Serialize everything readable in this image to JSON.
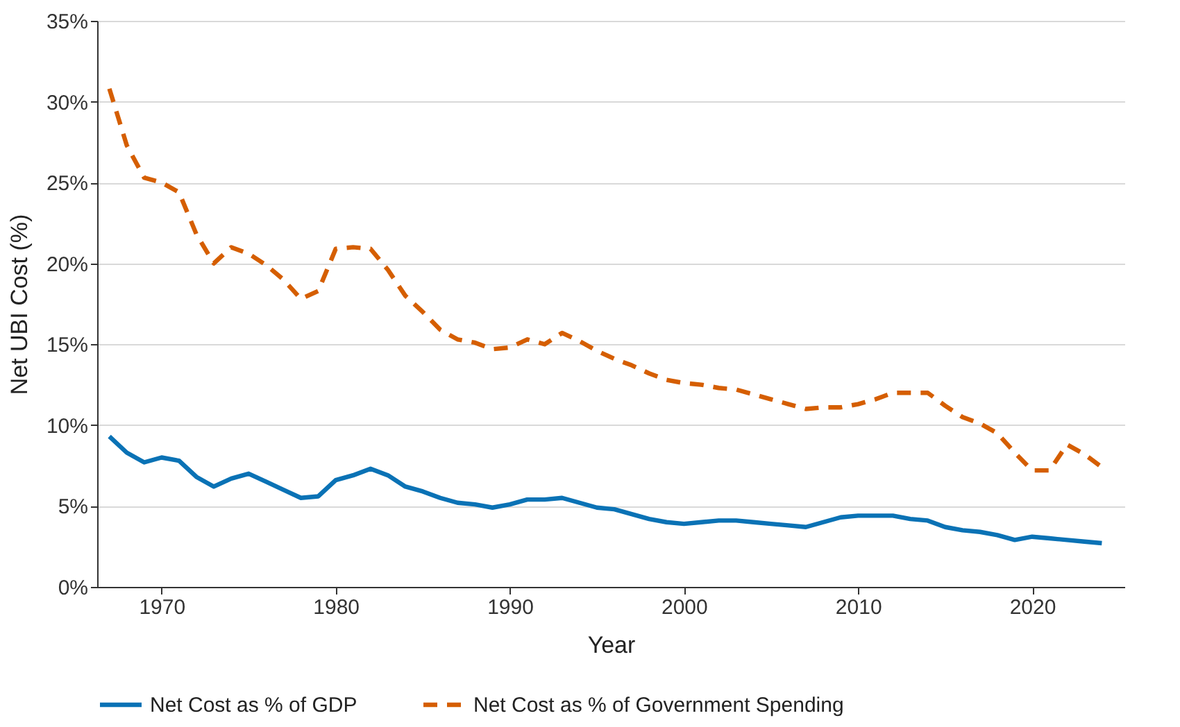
{
  "chart_data": {
    "type": "line",
    "xlabel": "Year",
    "ylabel": "Net UBI Cost (%)",
    "x": [
      1967,
      1968,
      1969,
      1970,
      1971,
      1972,
      1973,
      1974,
      1975,
      1976,
      1977,
      1978,
      1979,
      1980,
      1981,
      1982,
      1983,
      1984,
      1985,
      1986,
      1987,
      1988,
      1989,
      1990,
      1991,
      1992,
      1993,
      1994,
      1995,
      1996,
      1997,
      1998,
      1999,
      2000,
      2001,
      2002,
      2003,
      2004,
      2005,
      2006,
      2007,
      2008,
      2009,
      2010,
      2011,
      2012,
      2013,
      2014,
      2015,
      2016,
      2017,
      2018,
      2019,
      2020,
      2021,
      2022,
      2023,
      2024
    ],
    "series": [
      {
        "name": "Net Cost as % of GDP",
        "color": "#0a72b5",
        "line_style": "solid",
        "values": [
          9.3,
          8.3,
          7.7,
          8.0,
          7.8,
          6.8,
          6.2,
          6.7,
          7.0,
          6.5,
          6.0,
          5.5,
          5.6,
          6.6,
          6.9,
          7.3,
          6.9,
          6.2,
          5.9,
          5.5,
          5.2,
          5.1,
          4.9,
          5.1,
          5.4,
          5.4,
          5.5,
          5.2,
          4.9,
          4.8,
          4.5,
          4.2,
          4.0,
          3.9,
          4.0,
          4.1,
          4.1,
          4.0,
          3.9,
          3.8,
          3.7,
          4.0,
          4.3,
          4.4,
          4.4,
          4.4,
          4.2,
          4.1,
          3.7,
          3.5,
          3.4,
          3.2,
          2.9,
          3.1,
          3.0,
          2.9,
          2.8,
          2.7
        ]
      },
      {
        "name": "Net Cost as % of Government Spending",
        "color": "#d55e00",
        "line_style": "dashed",
        "values": [
          30.8,
          27.3,
          25.3,
          25.0,
          24.4,
          21.8,
          20.0,
          21.0,
          20.6,
          19.9,
          19.0,
          17.8,
          18.3,
          20.9,
          21.0,
          20.9,
          19.6,
          18.0,
          17.0,
          15.9,
          15.3,
          15.1,
          14.7,
          14.8,
          15.3,
          15.0,
          15.7,
          15.2,
          14.6,
          14.1,
          13.7,
          13.2,
          12.8,
          12.6,
          12.5,
          12.3,
          12.2,
          11.9,
          11.6,
          11.3,
          11.0,
          11.1,
          11.1,
          11.3,
          11.6,
          12.0,
          12.0,
          12.0,
          11.2,
          10.5,
          10.1,
          9.5,
          8.3,
          7.2,
          7.2,
          8.8,
          8.2,
          7.4
        ]
      }
    ],
    "xlim": [
      1966.3,
      2025.3
    ],
    "xticks": [
      1970,
      1980,
      1990,
      2000,
      2010,
      2020
    ],
    "ylim": [
      0,
      35
    ],
    "yticks": [
      {
        "value": 0,
        "label": "0%"
      },
      {
        "value": 5,
        "label": "5%"
      },
      {
        "value": 10,
        "label": "10%"
      },
      {
        "value": 15,
        "label": "15%"
      },
      {
        "value": 20,
        "label": "20%"
      },
      {
        "value": 25,
        "label": "25%"
      },
      {
        "value": 30,
        "label": "30%"
      },
      {
        "value": 35,
        "label": "35%"
      }
    ],
    "grid": "y",
    "legend": "bottom"
  }
}
